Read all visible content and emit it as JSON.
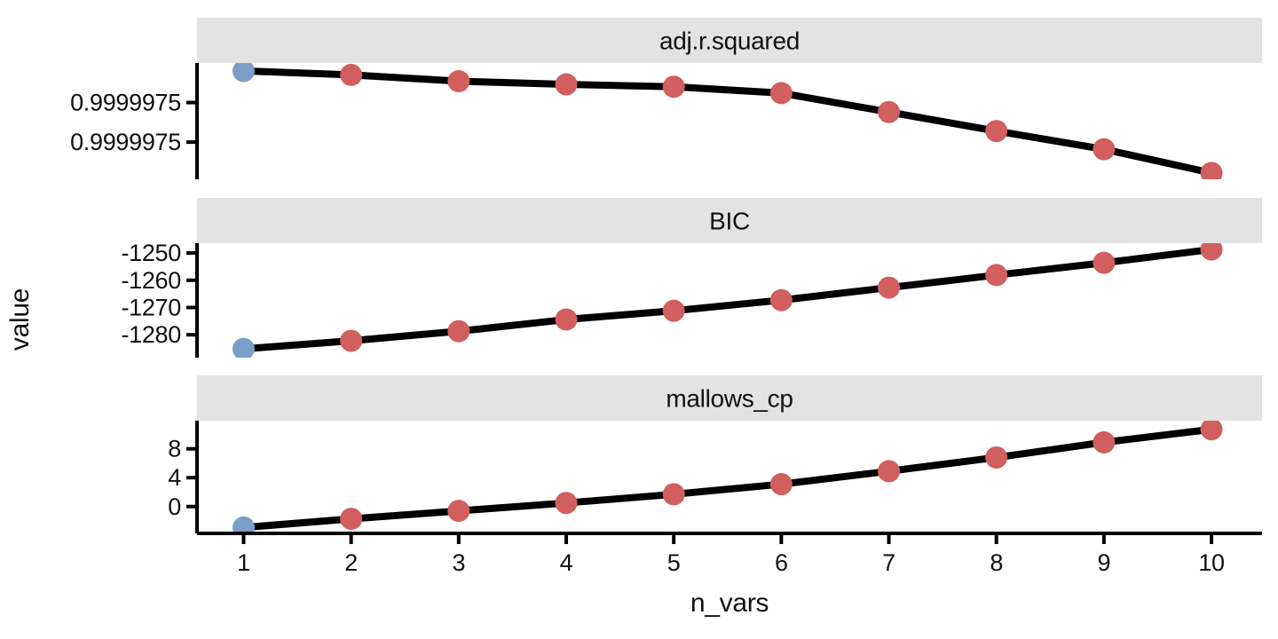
{
  "figure": {
    "background": "#ffffff",
    "colors": {
      "strip_bg": "#e3e3e3",
      "strip_text": "#111111",
      "axis_line": "#000000",
      "tick_label": "#111111",
      "line": "#000000",
      "point_default": "#d15f60",
      "point_highlight": "#7c9ec9"
    }
  },
  "chart_data": {
    "type": "line",
    "faceted": true,
    "facet_titles": [
      "adj.r.squared",
      "BIC",
      "mallows_cp"
    ],
    "xlabel": "n_vars",
    "ylabel": "value",
    "x": [
      1,
      2,
      3,
      4,
      5,
      6,
      7,
      8,
      9,
      10
    ],
    "xticks": [
      1,
      2,
      3,
      4,
      5,
      6,
      7,
      8,
      9,
      10
    ],
    "xtick_labels": [
      "1",
      "2",
      "3",
      "4",
      "5",
      "6",
      "7",
      "8",
      "9",
      "10"
    ],
    "xlim": [
      0.567,
      10.47
    ],
    "grid": false,
    "legend": "none",
    "line_color": "#000000",
    "point_color": "#d15f60",
    "highlight_point": {
      "x": 1,
      "color": "#7c9ec9"
    },
    "panels": [
      {
        "title": "adj.r.squared",
        "values": [
          0.99999756,
          0.999997555,
          0.999997547,
          0.999997543,
          0.99999754,
          0.999997532,
          0.999997508,
          0.999997484,
          0.999997461,
          0.999997431
        ],
        "ylim": [
          0.999997423,
          0.99999757
        ],
        "yticks": [
          0.99999752,
          0.99999747
        ],
        "ytick_labels": [
          "0.9999975",
          "0.9999975"
        ]
      },
      {
        "title": "BIC",
        "values": [
          -1285.2,
          -1282.2,
          -1278.7,
          -1274.4,
          -1271.2,
          -1267.3,
          -1262.7,
          -1258.1,
          -1253.6,
          -1248.7
        ],
        "ylim": [
          -1288.4,
          -1246.4
        ],
        "yticks": [
          -1250,
          -1260,
          -1270,
          -1280
        ],
        "ytick_labels": [
          "-1250",
          "-1260",
          "-1270",
          "-1280"
        ]
      },
      {
        "title": "mallows_cp",
        "values": [
          -2.9,
          -1.7,
          -0.6,
          0.5,
          1.7,
          3.1,
          4.9,
          6.8,
          8.9,
          10.7
        ],
        "ylim": [
          -3.72,
          11.9
        ],
        "yticks": [
          8,
          4,
          0
        ],
        "ytick_labels": [
          "8",
          "4",
          "0"
        ]
      }
    ]
  }
}
